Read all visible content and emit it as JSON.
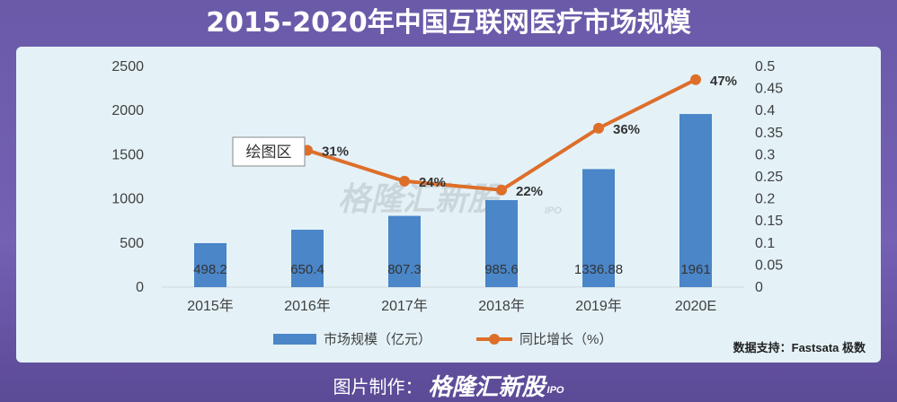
{
  "title": "2015-2020年中国互联网医疗市场规模",
  "source": "数据支持：Fastsata 极数",
  "footer": {
    "prefix": "图片制作：",
    "brand": "格隆汇新股",
    "brand_suffix": "IPO"
  },
  "watermark": {
    "text": "格隆汇新股",
    "suffix": "IPO"
  },
  "tooltip": "绘图区",
  "colors": {
    "bar": "#4a86c8",
    "line": "#dd6f2a",
    "panel": "#e4f2f8",
    "background": "#6a5aa8"
  },
  "chart_data": {
    "type": "bar",
    "categories": [
      "2015年",
      "2016年",
      "2017年",
      "2018年",
      "2019年",
      "2020E"
    ],
    "series": [
      {
        "name": "市场规模（亿元）",
        "type": "bar",
        "axis": "left",
        "values": [
          498.2,
          650.4,
          807.3,
          985.6,
          1336.88,
          1961
        ],
        "labels": [
          "498.2",
          "650.4",
          "807.3",
          "985.6",
          "1336.88",
          "1961"
        ]
      },
      {
        "name": "同比增长（%）",
        "type": "line",
        "axis": "right",
        "values": [
          null,
          0.31,
          0.24,
          0.22,
          0.36,
          0.47
        ],
        "labels": [
          "",
          "31%",
          "24%",
          "22%",
          "36%",
          "47%"
        ]
      }
    ],
    "y_left": {
      "min": 0,
      "max": 2500,
      "ticks": [
        "0",
        "500",
        "1000",
        "1500",
        "2000",
        "2500"
      ]
    },
    "y_right": {
      "min": 0,
      "max": 0.5,
      "ticks": [
        "0",
        "0.05",
        "0.1",
        "0.15",
        "0.2",
        "0.25",
        "0.3",
        "0.35",
        "0.4",
        "0.45",
        "0.5"
      ]
    },
    "legend_position": "bottom",
    "grid": false
  }
}
